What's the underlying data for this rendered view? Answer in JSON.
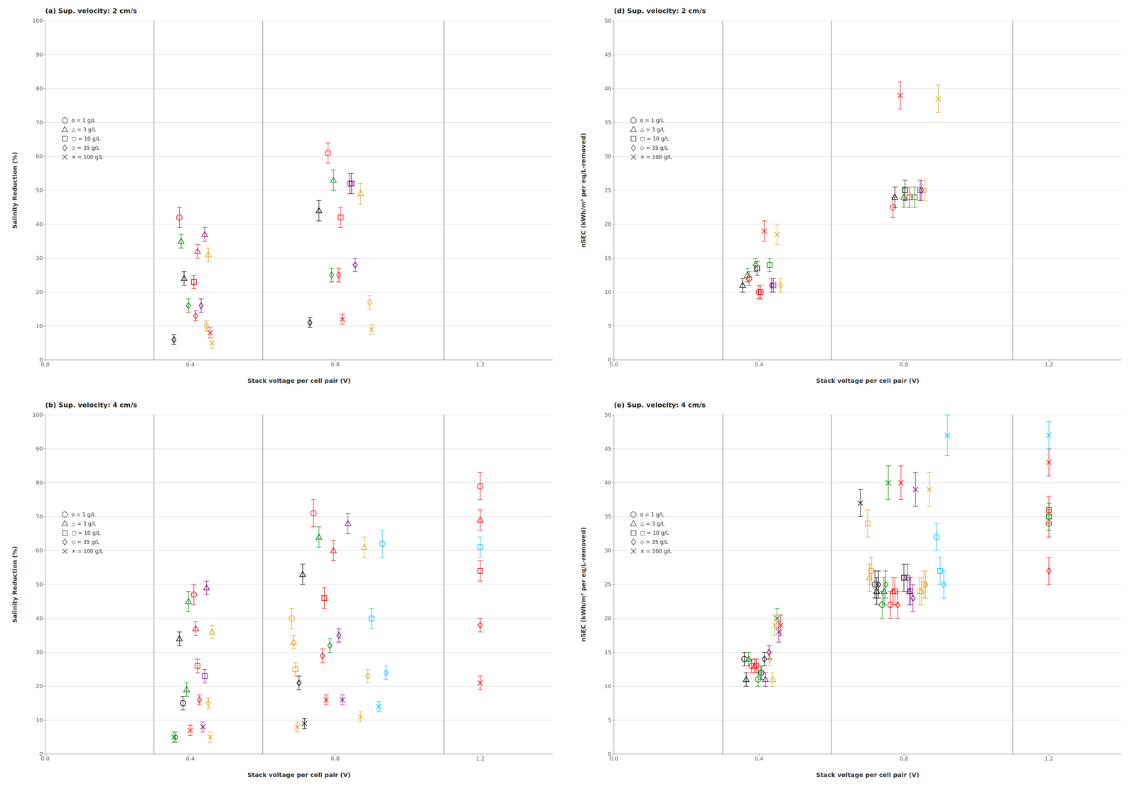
{
  "chart_data": [
    {
      "type": "scatter",
      "title": "(a) Sup. velocity: 2 cm/s",
      "x_label": "Stack voltage per cell pair (V)",
      "y_label": "Salinity Reduction (%)",
      "xlim": [
        0.0,
        1.4
      ],
      "xticks": [
        {
          "value": 0,
          "label": "0.0"
        },
        0.4,
        0.8,
        1.2
      ],
      "ylim": [
        0,
        100
      ],
      "yticks": [
        0,
        10,
        20,
        30,
        40,
        50,
        60,
        70,
        80,
        90,
        100
      ],
      "grid": "y",
      "legend": "upper left",
      "vlines": [
        0.3,
        0.6,
        1.1
      ],
      "series": [
        {
          "name": "o = 1 g/L",
          "marker": "circle",
          "color": "#555555",
          "x": [
            0.37,
            0.78,
            0.84
          ],
          "values": [
            42,
            61,
            52
          ],
          "yerr": [
            3,
            3,
            3
          ],
          "colors": [
            "#FF0000",
            "#FF0000",
            "#800080"
          ]
        },
        {
          "name": "△ = 3 g/L",
          "marker": "triangle",
          "color": "#555555",
          "x": [
            0.375,
            0.383,
            0.42,
            0.44,
            0.45,
            0.755,
            0.795,
            0.87
          ],
          "values": [
            35,
            24,
            32,
            37,
            31,
            44,
            53,
            49
          ],
          "yerr": [
            2,
            2,
            2,
            2,
            2,
            3,
            3,
            3
          ],
          "colors": [
            "#008000",
            "#000000",
            "#FF0000",
            "#800080",
            "#DAA520",
            "#000000",
            "#008000",
            "#DAA520"
          ]
        },
        {
          "name": "□ = 10 g/L",
          "marker": "square",
          "color": "#555555",
          "x": [
            0.41,
            0.815,
            0.845
          ],
          "values": [
            23,
            42,
            52
          ],
          "yerr": [
            2,
            3,
            3
          ],
          "colors": [
            "#FF0000",
            "#FF0000",
            "#800080"
          ]
        },
        {
          "name": "◇ = 35 g/L",
          "marker": "diamond",
          "color": "#555555",
          "x": [
            0.355,
            0.395,
            0.415,
            0.43,
            0.445,
            0.73,
            0.79,
            0.81,
            0.855,
            0.895
          ],
          "values": [
            6,
            16,
            13,
            16,
            10,
            11,
            25,
            25,
            28,
            17
          ],
          "yerr": [
            1.5,
            2,
            1.5,
            2,
            1.5,
            1.5,
            2,
            2,
            2,
            2
          ],
          "colors": [
            "#000000",
            "#008000",
            "#FF0000",
            "#800080",
            "#DAA520",
            "#000000",
            "#008000",
            "#FF0000",
            "#800080",
            "#DAA520"
          ]
        },
        {
          "name": "× = 100 g/L",
          "marker": "x",
          "color": "#555555",
          "x": [
            0.455,
            0.46,
            0.82,
            0.9
          ],
          "values": [
            8,
            5,
            12,
            9
          ],
          "yerr": [
            1.5,
            1.5,
            1.5,
            1.5
          ],
          "colors": [
            "#FF0000",
            "#DAA520",
            "#FF0000",
            "#DAA520"
          ]
        }
      ]
    },
    {
      "type": "scatter",
      "title": "(d) Sup. velocity: 2 cm/s",
      "x_label": "Stack voltage per cell pair (V)",
      "y_label": "nSEC (kWh/m³ per eq/L-removed)",
      "xlim": [
        0.0,
        1.4
      ],
      "xticks": [
        {
          "value": 0,
          "label": "0.0"
        },
        0.4,
        0.8,
        1.2
      ],
      "ylim": [
        0,
        50
      ],
      "yticks": [
        0,
        5,
        10,
        15,
        20,
        25,
        30,
        35,
        40,
        45,
        50
      ],
      "grid": "y",
      "legend": "upper left",
      "vlines": [
        0.3,
        0.6,
        1.1
      ],
      "series": [
        {
          "name": "o = 1 g/L",
          "marker": "circle",
          "color": "#555555",
          "x": [
            0.373,
            0.4,
            0.77
          ],
          "values": [
            12,
            10,
            22.5
          ],
          "yerr": [
            1,
            1,
            1.5
          ],
          "colors": [
            "#FF0000",
            "#FF0000",
            "#FF0000"
          ]
        },
        {
          "name": "△ = 3 g/L",
          "marker": "triangle",
          "color": "#555555",
          "x": [
            0.355,
            0.368,
            0.775,
            0.8
          ],
          "values": [
            11,
            12.5,
            24,
            24
          ],
          "yerr": [
            1,
            1,
            1.5,
            1.5
          ],
          "colors": [
            "#000000",
            "#008000",
            "#000000",
            "#008000"
          ]
        },
        {
          "name": "□ = 10 g/L",
          "marker": "square",
          "color": "#555555",
          "x": [
            0.395,
            0.405,
            0.43,
            0.44,
            0.803,
            0.815,
            0.83,
            0.845
          ],
          "values": [
            13.5,
            10,
            14,
            11,
            25,
            24,
            24,
            25
          ],
          "yerr": [
            1,
            1,
            1,
            1,
            1.5,
            1.5,
            1.5,
            1.5
          ],
          "colors": [
            "#000000",
            "#FF0000",
            "#008000",
            "#800080",
            "#000000",
            "#FF0000",
            "#008000",
            "#800080"
          ]
        },
        {
          "name": "◇ = 35 g/L",
          "marker": "diamond",
          "color": "#555555",
          "x": [
            0.39,
            0.435,
            0.46,
            0.848,
            0.858
          ],
          "values": [
            14,
            11,
            11,
            25,
            25
          ],
          "yerr": [
            1,
            1,
            1,
            1.5,
            1.5
          ],
          "colors": [
            "#008000",
            "#800080",
            "#DAA520",
            "#800080",
            "#DAA520"
          ]
        },
        {
          "name": "× = 100 g/L",
          "marker": "x",
          "color": "#555555",
          "x": [
            0.415,
            0.45,
            0.79,
            0.895
          ],
          "values": [
            19,
            18.5,
            39,
            38.5
          ],
          "yerr": [
            1.5,
            1.5,
            2,
            2
          ],
          "colors": [
            "#FF0000",
            "#DAA520",
            "#FF0000",
            "#DAA520"
          ]
        }
      ]
    },
    {
      "type": "scatter",
      "title": "(b) Sup. velocity: 4 cm/s",
      "x_label": "Stack voltage per cell pair (V)",
      "y_label": "Salinity Reduction (%)",
      "xlim": [
        0.0,
        1.4
      ],
      "xticks": [
        {
          "value": 0,
          "label": "0.0"
        },
        0.4,
        0.8,
        1.2
      ],
      "ylim": [
        0,
        100
      ],
      "yticks": [
        0,
        10,
        20,
        30,
        40,
        50,
        60,
        70,
        80,
        90,
        100
      ],
      "grid": "y",
      "legend": "upper left",
      "vlines": [
        0.3,
        0.6,
        1.1
      ],
      "series": [
        {
          "name": "o = 1 g/L",
          "marker": "circle",
          "color": "#555555",
          "x": [
            0.38,
            0.41,
            0.68,
            0.74,
            0.93,
            1.2
          ],
          "values": [
            15,
            47,
            40,
            71,
            62,
            79
          ],
          "yerr": [
            2,
            3,
            3,
            4,
            4,
            4
          ],
          "colors": [
            "#000000",
            "#FF0000",
            "#FF8C00",
            "#FF0000",
            "#00BFFF",
            "#FF0000"
          ]
        },
        {
          "name": "△ = 3 g/L",
          "marker": "triangle",
          "color": "#555555",
          "x": [
            0.37,
            0.39,
            0.395,
            0.415,
            0.445,
            0.46,
            0.685,
            0.71,
            0.755,
            0.795,
            0.835,
            0.88,
            1.2
          ],
          "values": [
            34,
            19,
            45,
            37,
            49,
            36,
            33,
            53,
            64,
            60,
            68,
            61,
            69
          ],
          "yerr": [
            2,
            2,
            3,
            2,
            2,
            2,
            2,
            3,
            3,
            3,
            3,
            3,
            3
          ],
          "colors": [
            "#000000",
            "#008000",
            "#008000",
            "#FF0000",
            "#800080",
            "#DAA520",
            "#FF8C00",
            "#000000",
            "#008000",
            "#FF0000",
            "#800080",
            "#DAA520",
            "#FF0000"
          ]
        },
        {
          "name": "□ = 10 g/L",
          "marker": "square",
          "color": "#555555",
          "x": [
            0.42,
            0.44,
            0.69,
            0.77,
            0.9,
            1.2,
            1.2
          ],
          "values": [
            26,
            23,
            25,
            46,
            40,
            54,
            61
          ],
          "yerr": [
            2,
            2,
            2,
            3,
            3,
            3,
            3
          ],
          "colors": [
            "#FF0000",
            "#800080",
            "#FF8C00",
            "#FF0000",
            "#00BFFF",
            "#FF0000",
            "#00BFFF"
          ]
        },
        {
          "name": "◇ = 35 g/L",
          "marker": "diamond",
          "color": "#555555",
          "x": [
            0.36,
            0.425,
            0.45,
            0.7,
            0.765,
            0.785,
            0.81,
            0.89,
            0.94,
            1.2
          ],
          "values": [
            5,
            16,
            15,
            21,
            29,
            32,
            35,
            23,
            24,
            38
          ],
          "yerr": [
            1.5,
            1.5,
            1.5,
            2,
            2,
            2,
            2,
            2,
            2,
            2
          ],
          "colors": [
            "#008000",
            "#FF0000",
            "#DAA520",
            "#000000",
            "#FF0000",
            "#008000",
            "#800080",
            "#DAA520",
            "#00BFFF",
            "#FF0000"
          ]
        },
        {
          "name": "× = 100 g/L",
          "marker": "x",
          "color": "#555555",
          "x": [
            0.355,
            0.4,
            0.435,
            0.455,
            0.695,
            0.715,
            0.775,
            0.82,
            0.87,
            0.92,
            1.2
          ],
          "values": [
            5,
            7,
            8,
            5,
            8,
            9,
            16,
            16,
            11,
            14,
            21
          ],
          "yerr": [
            1.5,
            1.5,
            1.5,
            1.5,
            1.5,
            1.5,
            1.5,
            1.5,
            1.5,
            1.5,
            2
          ],
          "colors": [
            "#008000",
            "#FF0000",
            "#800080",
            "#DAA520",
            "#FF8C00",
            "#000000",
            "#FF0000",
            "#800080",
            "#DAA520",
            "#00BFFF",
            "#FF0000"
          ]
        }
      ]
    },
    {
      "type": "scatter",
      "title": "(e) Sup. velocity: 4 cm/s",
      "x_label": "Stack voltage per cell pair (V)",
      "y_label": "nSEC (kWh/m³ per eq/L-removed)",
      "xlim": [
        0.0,
        1.4
      ],
      "xticks": [
        {
          "value": 0,
          "label": "0.0"
        },
        0.4,
        0.8,
        1.2
      ],
      "ylim": [
        0,
        50
      ],
      "yticks": [
        0,
        5,
        10,
        15,
        20,
        25,
        30,
        35,
        40,
        45,
        50
      ],
      "grid": "y",
      "legend": "upper left",
      "vlines": [
        0.3,
        0.6,
        1.1
      ],
      "series": [
        {
          "name": "o = 1 g/L",
          "marker": "circle",
          "color": "#555555",
          "x": [
            0.36,
            0.38,
            0.398,
            0.407,
            0.71,
            0.72,
            0.74,
            0.763,
            0.81,
            0.843,
            0.89,
            1.2,
            1.2
          ],
          "values": [
            14,
            13,
            11,
            12,
            27,
            25,
            22,
            22,
            26,
            24,
            32,
            34,
            35
          ],
          "yerr": [
            1,
            1,
            1,
            1,
            2,
            2,
            2,
            2,
            2,
            2,
            2,
            2,
            2
          ],
          "colors": [
            "#000000",
            "#FF0000",
            "#008000",
            "#800080",
            "#FF8C00",
            "#000000",
            "#008000",
            "#FF0000",
            "#800080",
            "#DAA520",
            "#00BFFF",
            "#FF0000",
            "#008000"
          ]
        },
        {
          "name": "△ = 3 g/L",
          "marker": "triangle",
          "color": "#555555",
          "x": [
            0.365,
            0.372,
            0.388,
            0.418,
            0.438,
            0.705,
            0.725,
            0.745,
            0.77,
            0.815,
            0.848
          ],
          "values": [
            11,
            14,
            13,
            11,
            11,
            26,
            24,
            24,
            24,
            24,
            24
          ],
          "yerr": [
            1,
            1,
            1,
            1,
            1,
            2,
            2,
            2,
            2,
            2,
            2
          ],
          "colors": [
            "#000000",
            "#008000",
            "#FF0000",
            "#800080",
            "#DAA520",
            "#FF8C00",
            "#000000",
            "#008000",
            "#FF0000",
            "#800080",
            "#DAA520"
          ]
        },
        {
          "name": "□ = 10 g/L",
          "marker": "square",
          "color": "#555555",
          "x": [
            0.393,
            0.405,
            0.7,
            0.775,
            0.8,
            0.818,
            0.855,
            0.9,
            1.2,
            1.2
          ],
          "values": [
            13,
            12,
            34,
            24,
            26,
            24,
            25,
            27,
            36,
            35
          ],
          "yerr": [
            1,
            1,
            2,
            2,
            2,
            2,
            2,
            2,
            2,
            2
          ],
          "colors": [
            "#FF0000",
            "#008000",
            "#FF8C00",
            "#FF0000",
            "#000000",
            "#800080",
            "#DAA520",
            "#00BFFF",
            "#FF0000",
            "#008000"
          ]
        },
        {
          "name": "◇ = 35 g/L",
          "marker": "diamond",
          "color": "#555555",
          "x": [
            0.415,
            0.428,
            0.43,
            0.73,
            0.75,
            0.783,
            0.825,
            0.86,
            0.91,
            1.2
          ],
          "values": [
            14,
            15,
            14,
            25,
            25,
            22,
            23,
            25,
            25,
            27
          ],
          "yerr": [
            1,
            1,
            1,
            2,
            2,
            2,
            2,
            2,
            2,
            2
          ],
          "colors": [
            "#000000",
            "#800080",
            "#DAA520",
            "#000000",
            "#008000",
            "#FF0000",
            "#800080",
            "#DAA520",
            "#00BFFF",
            "#FF0000"
          ]
        },
        {
          "name": "× = 100 g/L",
          "marker": "x",
          "color": "#555555",
          "x": [
            0.443,
            0.45,
            0.455,
            0.46,
            0.68,
            0.757,
            0.792,
            0.832,
            0.87,
            0.92,
            1.2,
            1.2
          ],
          "values": [
            19,
            20,
            18,
            19,
            37,
            40,
            40,
            39,
            39,
            47,
            43,
            47
          ],
          "yerr": [
            1.5,
            1.5,
            1.5,
            1.5,
            2,
            2.5,
            2.5,
            2.5,
            2.5,
            3,
            2,
            2
          ],
          "colors": [
            "#DAA520",
            "#008000",
            "#800080",
            "#FF0000",
            "#000000",
            "#008000",
            "#FF0000",
            "#800080",
            "#DAA520",
            "#00BFFF",
            "#FF0000",
            "#00BFFF"
          ]
        }
      ]
    }
  ]
}
